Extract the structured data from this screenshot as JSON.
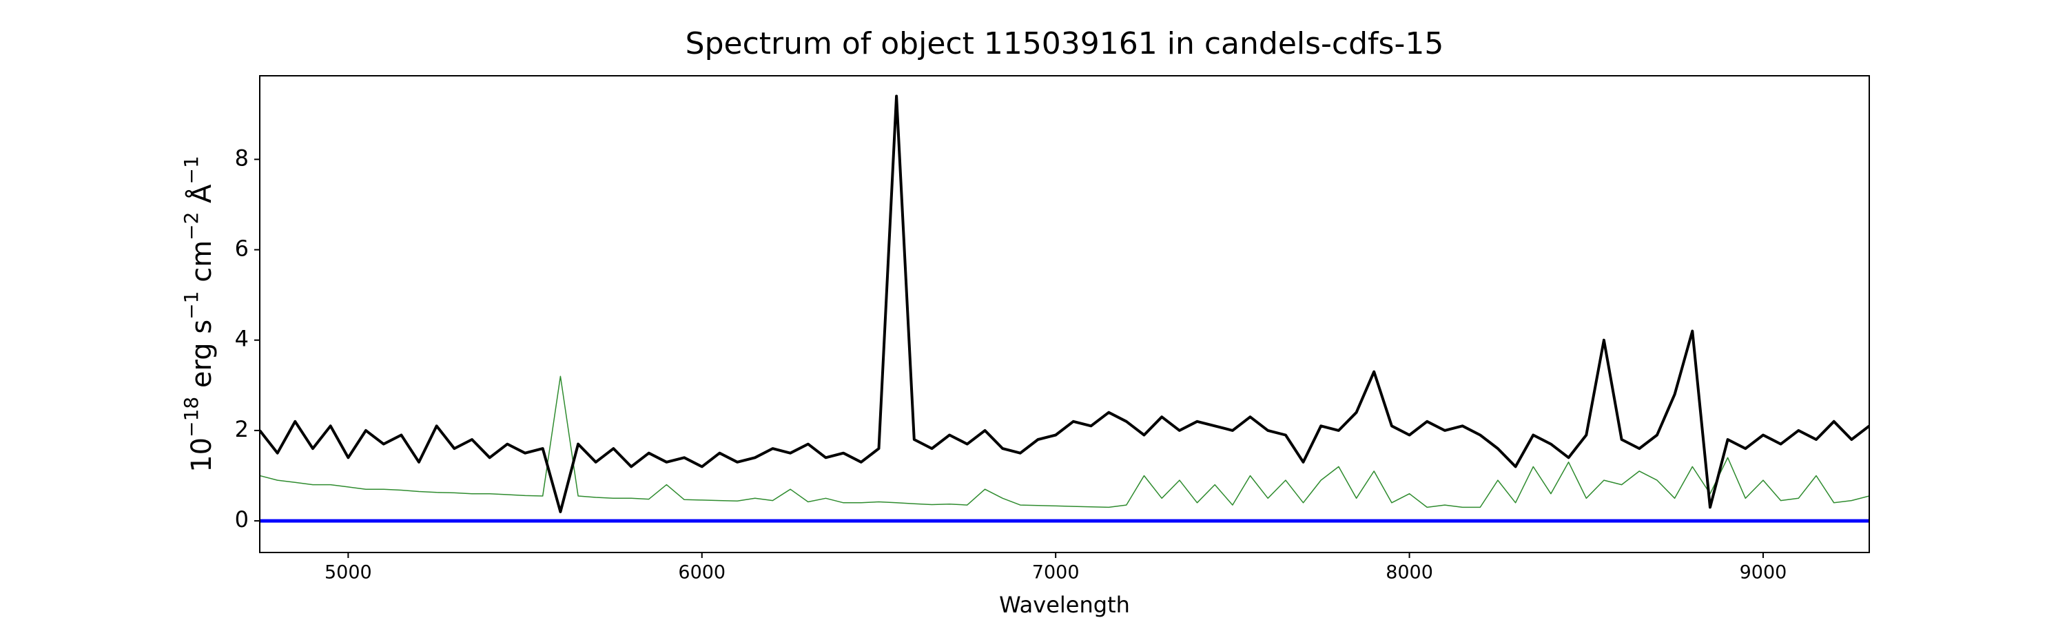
{
  "chart_data": {
    "type": "line",
    "title": "Spectrum of object 115039161 in candels-cdfs-15",
    "xlabel": "Wavelength",
    "ylabel_parts": [
      {
        "text": "10"
      },
      {
        "text": "−18",
        "sup": true
      },
      {
        "text": " erg s"
      },
      {
        "text": "−1",
        "sup": true
      },
      {
        "text": " cm"
      },
      {
        "text": "−2",
        "sup": true
      },
      {
        "text": " Å"
      },
      {
        "text": "−1",
        "sup": true
      }
    ],
    "x": [
      4750,
      4800,
      4850,
      4900,
      4950,
      5000,
      5050,
      5100,
      5150,
      5200,
      5250,
      5300,
      5350,
      5400,
      5450,
      5500,
      5550,
      5600,
      5650,
      5700,
      5750,
      5800,
      5850,
      5900,
      5950,
      6000,
      6050,
      6100,
      6150,
      6200,
      6250,
      6300,
      6350,
      6400,
      6450,
      6500,
      6550,
      6600,
      6650,
      6700,
      6750,
      6800,
      6850,
      6900,
      6950,
      7000,
      7050,
      7100,
      7150,
      7200,
      7250,
      7300,
      7350,
      7400,
      7450,
      7500,
      7550,
      7600,
      7650,
      7700,
      7750,
      7800,
      7850,
      7900,
      7950,
      8000,
      8050,
      8100,
      8150,
      8200,
      8250,
      8300,
      8350,
      8400,
      8450,
      8500,
      8550,
      8600,
      8650,
      8700,
      8750,
      8800,
      8850,
      8900,
      8950,
      9000,
      9050,
      9100,
      9150,
      9200,
      9250,
      9300
    ],
    "series": [
      {
        "color": "#000000",
        "values": [
          2.0,
          1.5,
          2.2,
          1.6,
          2.1,
          1.4,
          2.0,
          1.7,
          1.9,
          1.3,
          2.1,
          1.6,
          1.8,
          1.4,
          1.7,
          1.5,
          1.6,
          0.2,
          1.7,
          1.3,
          1.6,
          1.2,
          1.5,
          1.3,
          1.4,
          1.2,
          1.5,
          1.3,
          1.4,
          1.6,
          1.5,
          1.7,
          1.4,
          1.5,
          1.3,
          1.6,
          9.4,
          1.8,
          1.6,
          1.9,
          1.7,
          2.0,
          1.6,
          1.5,
          1.8,
          1.9,
          2.2,
          2.1,
          2.4,
          2.2,
          1.9,
          2.3,
          2.0,
          2.2,
          2.1,
          2.0,
          2.3,
          2.0,
          1.9,
          1.3,
          2.1,
          2.0,
          2.4,
          3.3,
          2.1,
          1.9,
          2.2,
          2.0,
          2.1,
          1.9,
          1.6,
          1.2,
          1.9,
          1.7,
          1.4,
          1.9,
          4.0,
          1.8,
          1.6,
          1.9,
          2.8,
          4.2,
          0.3,
          1.8,
          1.6,
          1.9,
          1.7,
          2.0,
          1.8,
          2.2,
          1.8,
          2.1
        ]
      },
      {
        "color": "#2e8b2e",
        "values": [
          1.0,
          0.9,
          0.85,
          0.8,
          0.8,
          0.75,
          0.7,
          0.7,
          0.68,
          0.65,
          0.63,
          0.62,
          0.6,
          0.6,
          0.58,
          0.56,
          0.55,
          3.2,
          0.55,
          0.52,
          0.5,
          0.5,
          0.48,
          0.8,
          0.47,
          0.46,
          0.45,
          0.44,
          0.5,
          0.45,
          0.7,
          0.42,
          0.5,
          0.4,
          0.4,
          0.42,
          0.4,
          0.38,
          0.36,
          0.37,
          0.35,
          0.7,
          0.5,
          0.35,
          0.34,
          0.33,
          0.32,
          0.31,
          0.3,
          0.35,
          1.0,
          0.5,
          0.9,
          0.4,
          0.8,
          0.35,
          1.0,
          0.5,
          0.9,
          0.4,
          0.9,
          1.2,
          0.5,
          1.1,
          0.4,
          0.6,
          0.3,
          0.35,
          0.3,
          0.3,
          0.9,
          0.4,
          1.2,
          0.6,
          1.3,
          0.5,
          0.9,
          0.8,
          1.1,
          0.9,
          0.5,
          1.2,
          0.6,
          1.4,
          0.5,
          0.9,
          0.45,
          0.5,
          1.0,
          0.4,
          0.45,
          0.55
        ]
      }
    ],
    "hlines": [
      {
        "value": 0,
        "color": "#0000ff"
      }
    ],
    "xlim": [
      4750,
      9300
    ],
    "ylim": [
      -0.7,
      9.85
    ],
    "xticks": [
      5000,
      6000,
      7000,
      8000,
      9000
    ],
    "yticks": [
      0,
      2,
      4,
      6,
      8
    ]
  }
}
